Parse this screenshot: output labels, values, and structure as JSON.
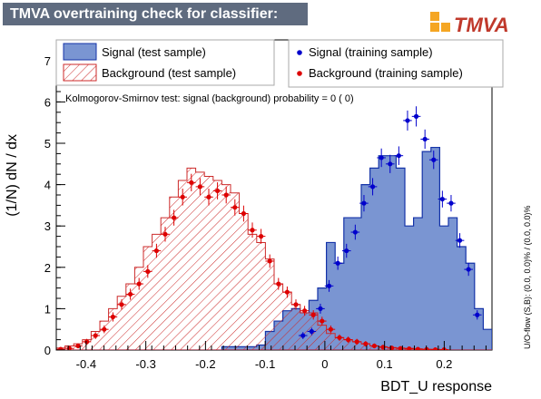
{
  "header": {
    "title": "TMVA overtraining check for classifier: BDT_U",
    "logo_text": "TMVA"
  },
  "colors": {
    "signal_fill": "#7a95d2",
    "signal_line": "#1433a8",
    "signal_points": "#0000cc",
    "background_hatch": "#cc2a2a",
    "background_points": "#dd0000",
    "title_bg": "#5f6b7f",
    "logo_orange": "#f5a623"
  },
  "legend": {
    "signal_test": "Signal (test sample)",
    "background_test": "Background (test sample)",
    "signal_train": "Signal (training sample)",
    "background_train": "Background (training sample)"
  },
  "ks_text": "Kolmogorov-Smirnov test: signal (background) probability =      0 (    0)",
  "side_label": "U/O-flow (S,B): (0.0, 0.0)% / (0.0, 0.0)%",
  "chart_data": {
    "type": "histogram",
    "xlabel": "BDT_U response",
    "ylabel": "(1/N) dN / dx",
    "xlim": [
      -0.45,
      0.28
    ],
    "ylim": [
      0,
      7.5
    ],
    "x_ticks": [
      -0.4,
      -0.3,
      -0.2,
      -0.1,
      0,
      0.1,
      0.2
    ],
    "x_tick_labels": [
      "-0.4",
      "-0.3",
      "-0.2",
      "-0.1",
      "0",
      "0.1",
      "0.2"
    ],
    "y_ticks": [
      0,
      1,
      2,
      3,
      4,
      5,
      6,
      7
    ],
    "y_tick_labels": [
      "0",
      "1",
      "2",
      "3",
      "4",
      "5",
      "6",
      "7"
    ],
    "bin_low": -0.45,
    "bin_width": 0.0146,
    "series": [
      {
        "name": "Signal (test sample)",
        "style": "filled",
        "values": [
          0,
          0,
          0,
          0,
          0,
          0,
          0,
          0,
          0,
          0,
          0,
          0,
          0,
          0,
          0,
          0,
          0,
          0,
          0,
          0.08,
          0.08,
          0.08,
          0.08,
          0.12,
          0.45,
          0.7,
          0.95,
          1.0,
          0.9,
          1.2,
          1.5,
          2.6,
          2.1,
          3.2,
          3.2,
          4.0,
          4.4,
          4.7,
          4.7,
          4.4,
          3.0,
          3.2,
          4.8,
          4.9,
          3.0,
          3.2,
          2.5,
          2.1,
          1.0,
          0.5
        ]
      },
      {
        "name": "Background (test sample)",
        "style": "hatched",
        "values": [
          0.05,
          0.1,
          0.15,
          0.25,
          0.45,
          0.7,
          1.0,
          1.3,
          1.6,
          2.0,
          2.5,
          2.8,
          3.2,
          3.7,
          4.1,
          4.4,
          4.3,
          4.2,
          4.1,
          4.0,
          3.8,
          3.3,
          2.8,
          2.6,
          2.2,
          1.6,
          1.4,
          1.1,
          0.9,
          0.9,
          0.6,
          0.4,
          0.3,
          0.25,
          0.2,
          0.15,
          0.1,
          0.08,
          0.06,
          0.05,
          0.04,
          0.03,
          0.02,
          0.02,
          0.01,
          0,
          0,
          0,
          0,
          0
        ]
      },
      {
        "name": "Signal (training sample)",
        "style": "points",
        "x": [
          -0.0367,
          -0.0221,
          -0.0075,
          0.0071,
          0.0217,
          0.0363,
          0.0509,
          0.0655,
          0.0801,
          0.0947,
          0.1093,
          0.1239,
          0.1385,
          0.1531,
          0.1677,
          0.1823,
          0.1969,
          0.2115,
          0.2261,
          0.2407,
          0.2553
        ],
        "y": [
          0.35,
          0.45,
          1.0,
          1.55,
          2.1,
          2.4,
          2.85,
          3.55,
          3.95,
          4.65,
          4.5,
          4.7,
          5.55,
          5.65,
          5.1,
          4.6,
          3.65,
          3.55,
          2.65,
          1.95,
          0.85
        ]
      },
      {
        "name": "Background (training sample)",
        "style": "points",
        "x": [
          -0.4427,
          -0.4281,
          -0.4135,
          -0.3989,
          -0.3843,
          -0.3697,
          -0.3551,
          -0.3405,
          -0.3259,
          -0.3113,
          -0.2967,
          -0.2821,
          -0.2675,
          -0.2529,
          -0.2383,
          -0.2237,
          -0.2091,
          -0.1945,
          -0.1799,
          -0.1653,
          -0.1507,
          -0.1361,
          -0.1215,
          -0.1069,
          -0.0923,
          -0.0777,
          -0.0631,
          -0.0485,
          -0.0339,
          -0.0193,
          -0.0047,
          0.0099,
          0.0245,
          0.0391,
          0.0537,
          0.0683,
          0.0829,
          0.0975,
          0.1121,
          0.1267,
          0.1413,
          0.1559,
          0.1705,
          0.1851,
          0.1997
        ],
        "y": [
          0.02,
          0.04,
          0.1,
          0.2,
          0.35,
          0.5,
          0.8,
          1.1,
          1.35,
          1.6,
          1.9,
          2.4,
          2.8,
          3.2,
          3.7,
          4.05,
          3.95,
          3.7,
          3.85,
          3.75,
          3.45,
          3.3,
          2.9,
          2.75,
          2.15,
          1.6,
          1.4,
          1.1,
          0.95,
          0.85,
          0.7,
          0.5,
          0.3,
          0.25,
          0.2,
          0.15,
          0.1,
          0.07,
          0.05,
          0.04,
          0.03,
          0.02,
          0.015,
          0.01,
          0.01
        ]
      }
    ]
  }
}
